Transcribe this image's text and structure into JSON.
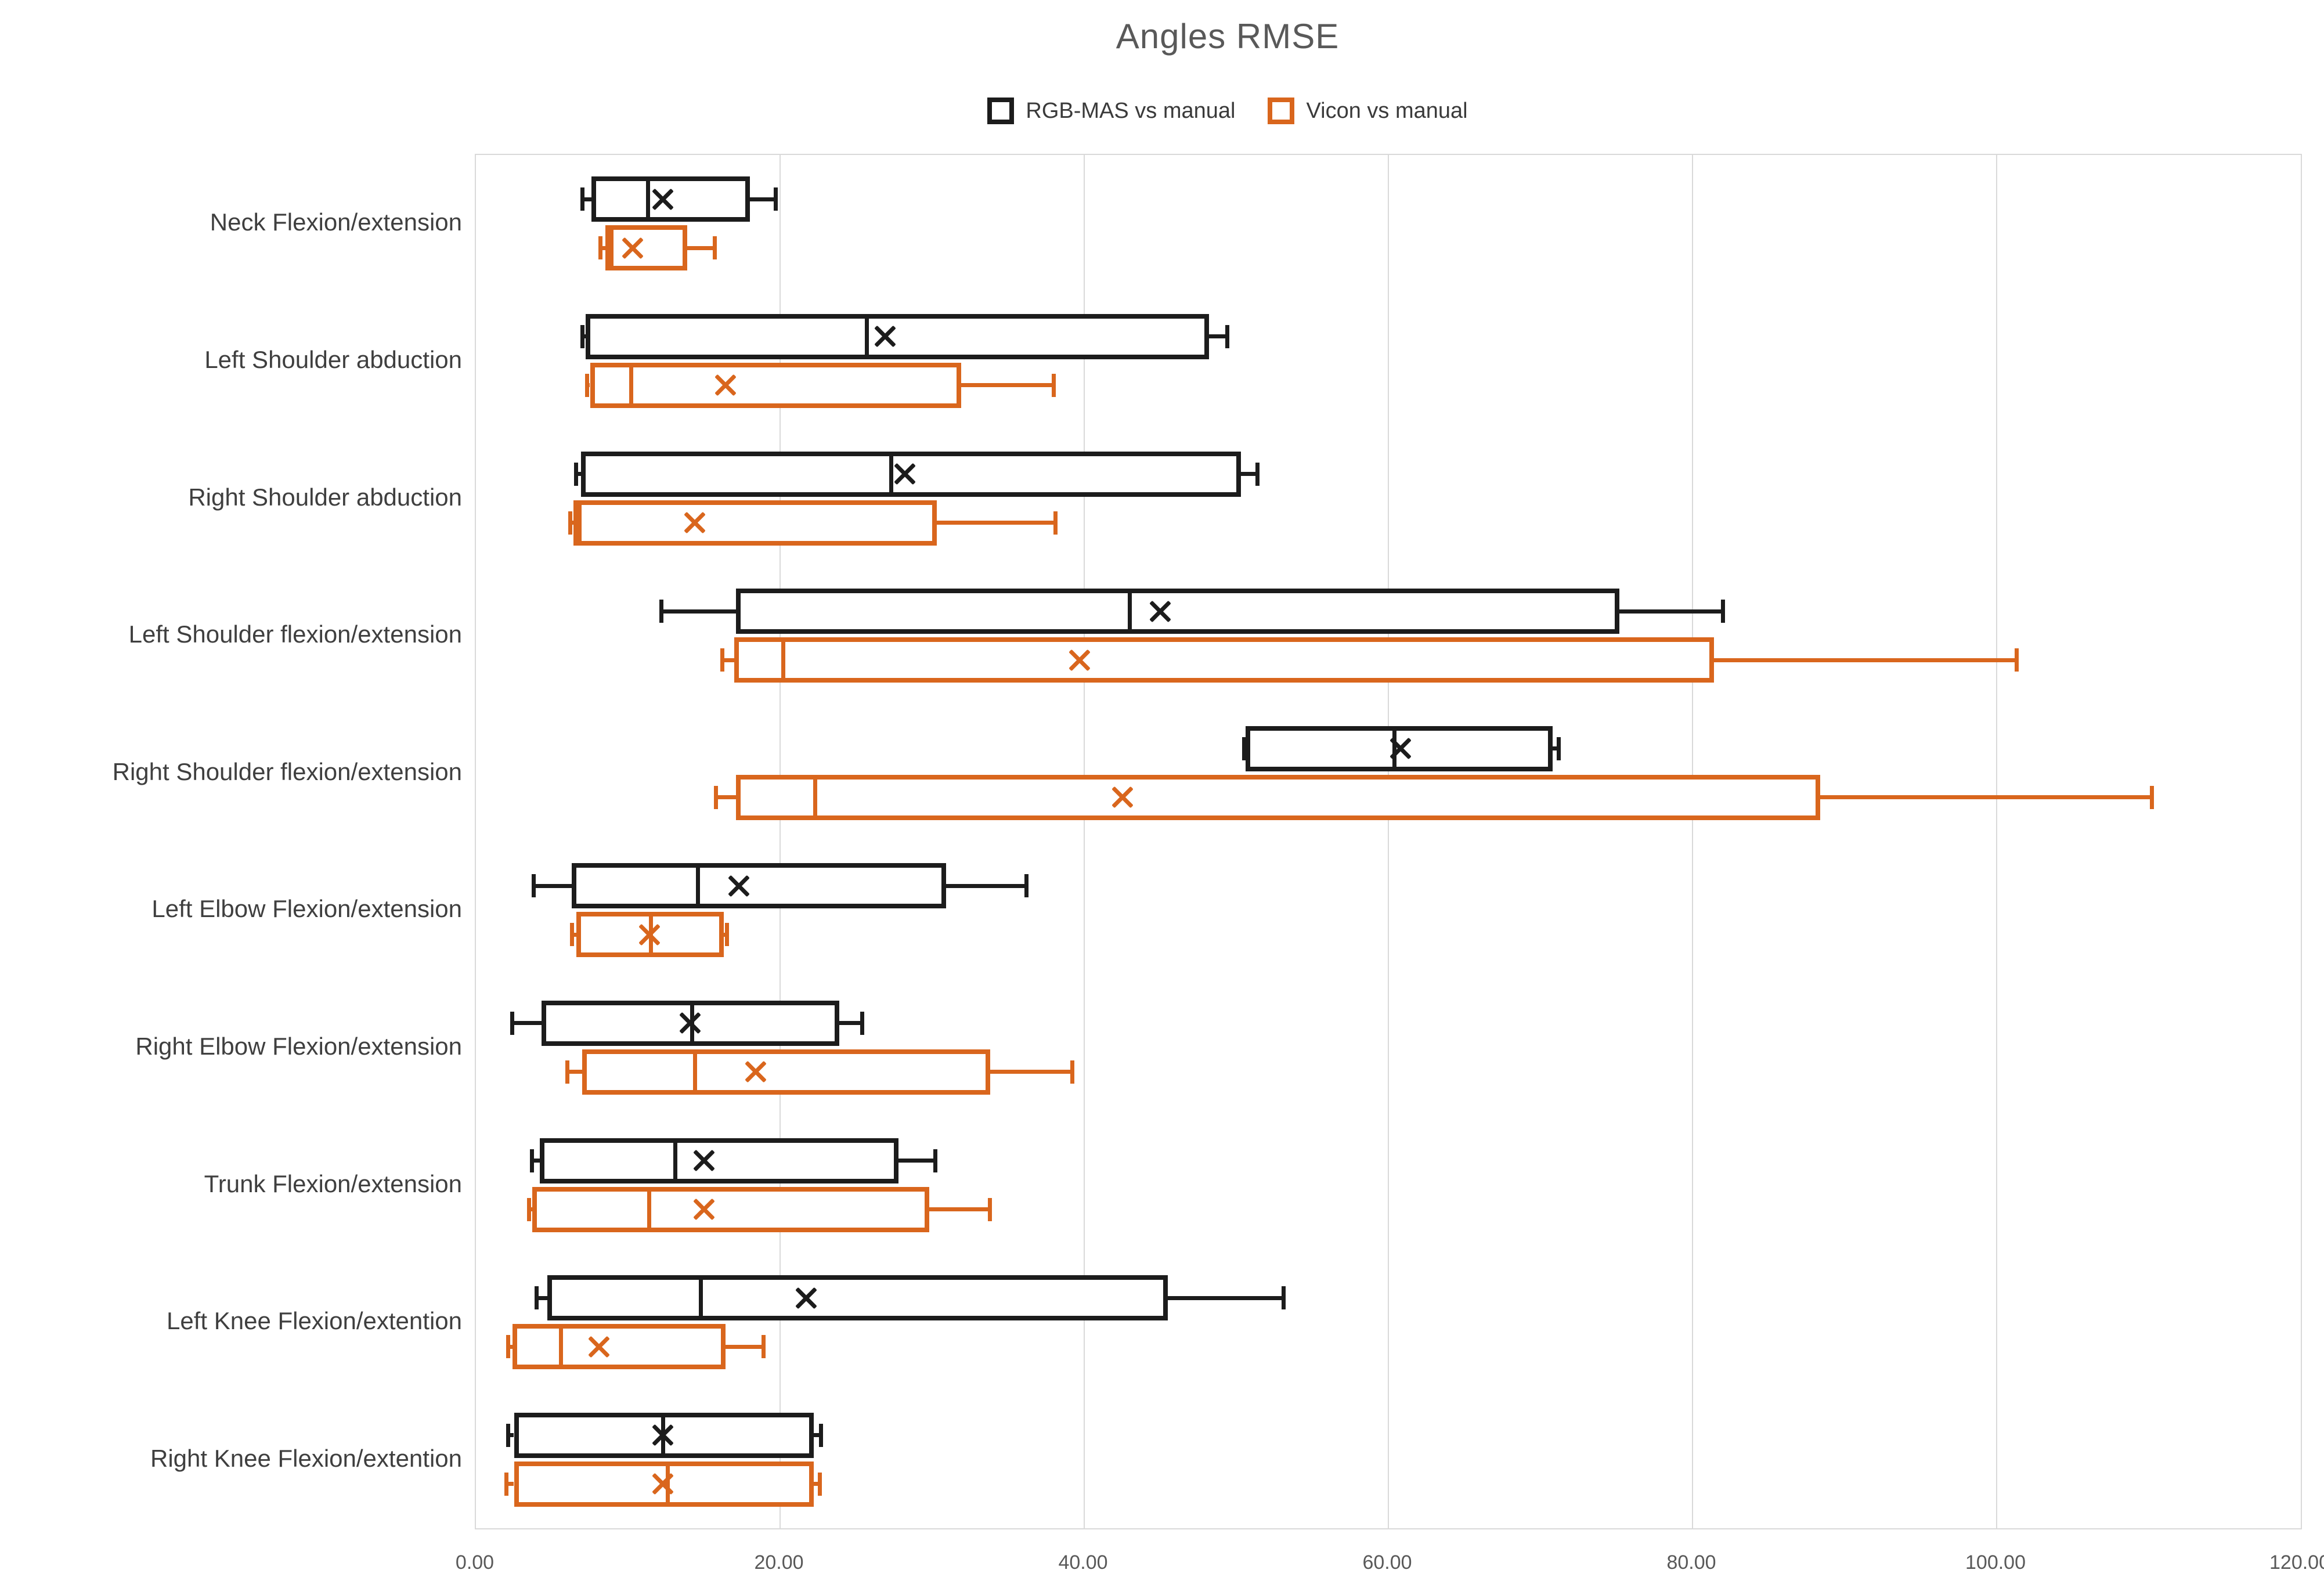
{
  "chart_data": {
    "type": "boxplot-horizontal",
    "title": "Angles RMSE",
    "xlabel": "",
    "ylabel": "",
    "xlim": [
      0,
      120
    ],
    "grid": true,
    "legend_position": "top-center",
    "x_ticks": [
      {
        "value": 0,
        "label": "0.00"
      },
      {
        "value": 20,
        "label": "20.00"
      },
      {
        "value": 40,
        "label": "40.00"
      },
      {
        "value": 60,
        "label": "60.00"
      },
      {
        "value": 80,
        "label": "80.00"
      },
      {
        "value": 100,
        "label": "100.00"
      },
      {
        "value": 120,
        "label": "120.00"
      }
    ],
    "categories": [
      "Neck Flexion/extension",
      "Left Shoulder abduction",
      "Right Shoulder abduction",
      "Left Shoulder flexion/extension",
      "Right Shoulder flexion/extension",
      "Left Elbow Flexion/extension",
      "Right Elbow Flexion/extension",
      "Trunk Flexion/extension",
      "Left Knee Flexion/extention",
      "Right Knee Flexion/extention"
    ],
    "series": [
      {
        "name": "RGB-MAS vs manual",
        "color": "#1c1c1c",
        "boxes": [
          {
            "whisker_low": 7.0,
            "q1": 7.6,
            "median": 11.3,
            "mean": 12.3,
            "q3": 18.0,
            "whisker_high": 19.7
          },
          {
            "whisker_low": 7.0,
            "q1": 7.2,
            "median": 25.7,
            "mean": 26.9,
            "q3": 48.2,
            "whisker_high": 49.4
          },
          {
            "whisker_low": 6.6,
            "q1": 6.9,
            "median": 27.3,
            "mean": 28.2,
            "q3": 50.3,
            "whisker_high": 51.4
          },
          {
            "whisker_low": 12.2,
            "q1": 17.1,
            "median": 43.0,
            "mean": 45.0,
            "q3": 75.2,
            "whisker_high": 82.0
          },
          {
            "whisker_low": 50.5,
            "q1": 50.6,
            "median": 60.4,
            "mean": 60.8,
            "q3": 70.8,
            "whisker_high": 71.2
          },
          {
            "whisker_low": 3.8,
            "q1": 6.3,
            "median": 14.6,
            "mean": 17.3,
            "q3": 30.9,
            "whisker_high": 36.2
          },
          {
            "whisker_low": 2.4,
            "q1": 4.3,
            "median": 14.2,
            "mean": 14.1,
            "q3": 23.9,
            "whisker_high": 25.4
          },
          {
            "whisker_low": 3.7,
            "q1": 4.2,
            "median": 13.1,
            "mean": 15.0,
            "q3": 27.8,
            "whisker_high": 30.2
          },
          {
            "whisker_low": 4.0,
            "q1": 4.7,
            "median": 14.8,
            "mean": 21.7,
            "q3": 45.5,
            "whisker_high": 53.1
          },
          {
            "whisker_low": 2.1,
            "q1": 2.5,
            "median": 12.3,
            "mean": 12.3,
            "q3": 22.2,
            "whisker_high": 22.7
          }
        ]
      },
      {
        "name": "Vicon vs manual",
        "color": "#d9661d",
        "boxes": [
          {
            "whisker_low": 8.2,
            "q1": 8.5,
            "median": 8.9,
            "mean": 10.3,
            "q3": 13.9,
            "whisker_high": 15.7
          },
          {
            "whisker_low": 7.3,
            "q1": 7.5,
            "median": 10.2,
            "mean": 16.4,
            "q3": 31.9,
            "whisker_high": 38.0
          },
          {
            "whisker_low": 6.2,
            "q1": 6.4,
            "median": 6.8,
            "mean": 14.4,
            "q3": 30.3,
            "whisker_high": 38.1
          },
          {
            "whisker_low": 16.2,
            "q1": 17.0,
            "median": 20.2,
            "mean": 39.7,
            "q3": 81.4,
            "whisker_high": 101.3
          },
          {
            "whisker_low": 15.8,
            "q1": 17.1,
            "median": 22.3,
            "mean": 42.5,
            "q3": 88.4,
            "whisker_high": 110.2
          },
          {
            "whisker_low": 6.3,
            "q1": 6.6,
            "median": 11.5,
            "mean": 11.4,
            "q3": 16.3,
            "whisker_high": 16.5
          },
          {
            "whisker_low": 6.0,
            "q1": 7.0,
            "median": 14.4,
            "mean": 18.4,
            "q3": 33.8,
            "whisker_high": 39.2
          },
          {
            "whisker_low": 3.5,
            "q1": 3.7,
            "median": 11.4,
            "mean": 15.0,
            "q3": 29.8,
            "whisker_high": 33.8
          },
          {
            "whisker_low": 2.1,
            "q1": 2.4,
            "median": 5.6,
            "mean": 8.1,
            "q3": 16.4,
            "whisker_high": 18.9
          },
          {
            "whisker_low": 2.0,
            "q1": 2.5,
            "median": 12.6,
            "mean": 12.3,
            "q3": 22.2,
            "whisker_high": 22.6
          }
        ]
      }
    ],
    "colors": {
      "gridline": "#d9d9d9",
      "axis_text": "#595959",
      "category_text": "#3f3f3f",
      "title_text": "#595959",
      "background": "#ffffff"
    }
  }
}
